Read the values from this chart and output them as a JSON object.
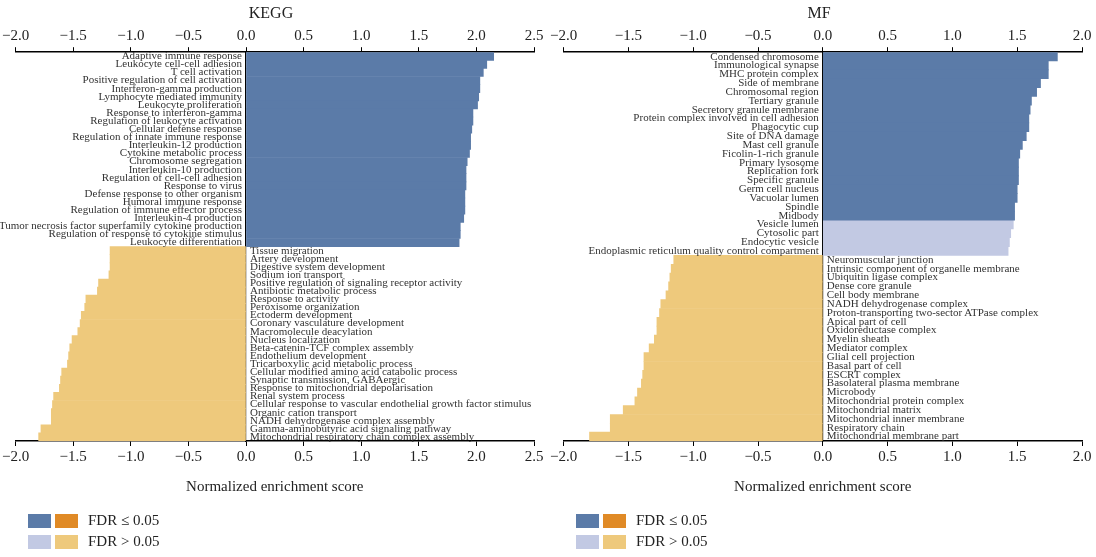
{
  "chart_data": [
    {
      "type": "bar",
      "orientation": "horizontal",
      "stacked": true,
      "title": "KEGG",
      "xlabel": "Normalized enrichment score",
      "legend": "bottom left",
      "grid": false,
      "categories": [
        "Adaptive immune response",
        "Leukocyte cell-cell adhesion",
        "T cell activation",
        "Positive regulation of cell activation",
        "Interferon-gamma production",
        "Lymphocyte mediated immunity",
        "Leukocyte proliferation",
        "Response to interferon-gamma",
        "Regulation of leukocyte activation",
        "Cellular defense response",
        "Regulation of innate immune response",
        "Interleukin-12 production",
        "Cytokine metabolic process",
        "Chromosome segregation",
        "Interleukin-10 production",
        "Regulation of cell-cell adhesion",
        "Response to virus",
        "Defense response to other organism",
        "Humoral immune response",
        "Regulation of immune effector process",
        "Interleukin-4 production",
        "Tumor necrosis factor superfamily cytokine production",
        "Regulation of response to cytokine stimulus",
        "Leukocyte differentiation",
        "Tissue migration",
        "Artery development",
        "Digestive system development",
        "Sodium ion transport",
        "Positive regulation of signaling receptor activity",
        "Antibiotic metabolic process",
        "Response to activity",
        "Peroxisome organization",
        "Ectoderm development",
        "Coronary vasculature development",
        "Macromolecule deacylation",
        "Nucleus localization",
        "Beta-catenin-TCF complex assembly",
        "Endothelium development",
        "Tricarboxylic acid metabolic process",
        "Cellular modified amino acid catabolic process",
        "Synaptic transmission, GABAergic",
        "Response to mitochondrial depolarisation",
        "Renal system process",
        "Cellular response to vascular endothelial growth factor stimulus",
        "Organic cation transport",
        "NADH dehydrogenase complex assembly",
        "Gamma-aminobutyric acid signaling pathway",
        "Mitochondrial respiratory chain complex assembly"
      ],
      "series": [
        {
          "color": "#5b7ba8",
          "values": [
            2.15,
            2.09,
            2.06,
            2.03,
            2.03,
            2.02,
            2.01,
            1.97,
            1.97,
            1.96,
            1.95,
            1.95,
            1.94,
            1.92,
            1.91,
            1.91,
            1.91,
            1.9,
            1.9,
            1.9,
            1.89,
            1.86,
            1.86,
            1.85,
            null,
            null,
            null,
            null,
            null,
            null,
            null,
            null,
            null,
            null,
            null,
            null,
            null,
            null,
            null,
            null,
            null,
            null,
            null,
            null,
            null,
            null,
            null,
            null
          ]
        },
        {
          "name": "FDR ≤ 0.05",
          "color": "#e08a26",
          "values": [
            null,
            null,
            null,
            null,
            null,
            null,
            null,
            null,
            null,
            null,
            null,
            null,
            null,
            null,
            null,
            null,
            null,
            null,
            null,
            null,
            null,
            null,
            null,
            null,
            null,
            null,
            null,
            null,
            null,
            null,
            null,
            null,
            null,
            null,
            null,
            null,
            null,
            null,
            null,
            null,
            null,
            null,
            null,
            null,
            null,
            null,
            null,
            null
          ]
        },
        {
          "color": "#c2c9e3",
          "values": [
            null,
            null,
            null,
            null,
            null,
            null,
            null,
            null,
            null,
            null,
            null,
            null,
            null,
            null,
            null,
            null,
            null,
            null,
            null,
            null,
            null,
            null,
            null,
            null,
            null,
            null,
            null,
            null,
            null,
            null,
            null,
            null,
            null,
            null,
            null,
            null,
            null,
            null,
            null,
            null,
            null,
            null,
            null,
            null,
            null,
            null,
            null,
            null
          ]
        },
        {
          "name": "FDR > 0.05",
          "color": "#eec97c",
          "values": [
            null,
            null,
            null,
            null,
            null,
            null,
            null,
            null,
            null,
            null,
            null,
            null,
            null,
            null,
            null,
            null,
            null,
            null,
            null,
            null,
            null,
            null,
            null,
            null,
            -1.18,
            -1.18,
            -1.18,
            -1.19,
            -1.28,
            -1.29,
            -1.39,
            -1.4,
            -1.43,
            -1.44,
            -1.46,
            -1.51,
            -1.53,
            -1.54,
            -1.55,
            -1.6,
            -1.61,
            -1.62,
            -1.67,
            -1.68,
            -1.69,
            -1.69,
            -1.78,
            -1.8
          ]
        }
      ],
      "xlim": [
        -2,
        2.5
      ],
      "xticks": [
        {
          "value": -2,
          "label": "−2.0"
        },
        {
          "value": -1.5,
          "label": "−1.5"
        },
        {
          "value": -1,
          "label": "−1.0"
        },
        {
          "value": -0.5,
          "label": "−0.5"
        },
        {
          "value": 0,
          "label": "0.0"
        },
        {
          "value": 0.5,
          "label": "0.5"
        },
        {
          "value": 1,
          "label": "1.0"
        },
        {
          "value": 1.5,
          "label": "1.5"
        },
        {
          "value": 2,
          "label": "2.0"
        },
        {
          "value": 2.5,
          "label": "2.5"
        }
      ],
      "x2lim": [
        -2,
        2.5
      ],
      "x2ticks": [
        {
          "value": -2,
          "label": "−2.0"
        },
        {
          "value": -1.5,
          "label": "−1.5"
        },
        {
          "value": -1,
          "label": "−1.0"
        },
        {
          "value": -0.5,
          "label": "−0.5"
        },
        {
          "value": 0,
          "label": "0.0"
        },
        {
          "value": 0.5,
          "label": "0.5"
        },
        {
          "value": 1,
          "label": "1.0"
        },
        {
          "value": 1.5,
          "label": "1.5"
        },
        {
          "value": 2,
          "label": "2.0"
        },
        {
          "value": 2.5,
          "label": "2.5"
        }
      ]
    },
    {
      "type": "bar",
      "orientation": "horizontal",
      "stacked": true,
      "title": "MF",
      "xlabel": "Normalized enrichment score",
      "legend": "bottom left",
      "grid": false,
      "categories": [
        "Condensed chromosome",
        "Immunological synapse",
        "MHC protein complex",
        "Side of membrane",
        "Chromosomal region",
        "Tertiary granule",
        "Secretory granule membrane",
        "Protein complex involved in cell adhesion",
        "Phagocytic cup",
        "Site of DNA damage",
        "Mast cell granule",
        "Ficolin-1-rich granule",
        "Primary lysosome",
        "Replication fork",
        "Specific granule",
        "Germ cell nucleus",
        "Vacuolar lumen",
        "Spindle",
        "Midbody",
        "Vesicle lumen",
        "Cytosolic part",
        "Endocytic vesicle",
        "Endoplasmic reticulum quality control compartment",
        "Neuromuscular junction",
        "Intrinsic component of organelle membrane",
        "Ubiquitin ligase complex",
        "Dense core granule",
        "Cell body membrane",
        "NADH dehydrogenase complex",
        "Proton-transporting two-sector ATPase complex",
        "Apical part of cell",
        "Oxidoreductase complex",
        "Myelin sheath",
        "Mediator complex",
        "Glial cell projection",
        "Basal part of cell",
        "ESCRT complex",
        "Basolateral plasma membrane",
        "Microbody",
        "Mitochondrial protein complex",
        "Mitochondrial matrix",
        "Mitochondrial inner membrane",
        "Respiratory chain",
        "Mitochondrial membrane part"
      ],
      "series": [
        {
          "color": "#5b7ba8",
          "values": [
            1.81,
            1.74,
            1.74,
            1.68,
            1.65,
            1.61,
            1.6,
            1.59,
            1.59,
            1.57,
            1.54,
            1.52,
            1.51,
            1.51,
            1.51,
            1.5,
            1.5,
            1.48,
            1.48,
            null,
            null,
            null,
            null,
            null,
            null,
            null,
            null,
            null,
            null,
            null,
            null,
            null,
            null,
            null,
            null,
            null,
            null,
            null,
            null,
            null,
            null,
            null,
            null,
            null
          ]
        },
        {
          "name": "FDR ≤ 0.05",
          "color": "#e08a26",
          "values": [
            null,
            null,
            null,
            null,
            null,
            null,
            null,
            null,
            null,
            null,
            null,
            null,
            null,
            null,
            null,
            null,
            null,
            null,
            null,
            null,
            null,
            null,
            null,
            null,
            null,
            null,
            null,
            null,
            null,
            null,
            null,
            null,
            null,
            null,
            null,
            null,
            null,
            null,
            null,
            null,
            null,
            null,
            null,
            null
          ]
        },
        {
          "color": "#c2c9e3",
          "values": [
            null,
            null,
            null,
            null,
            null,
            null,
            null,
            null,
            null,
            null,
            null,
            null,
            null,
            null,
            null,
            null,
            null,
            null,
            null,
            1.47,
            1.45,
            1.44,
            1.43,
            null,
            null,
            null,
            null,
            null,
            null,
            null,
            null,
            null,
            null,
            null,
            null,
            null,
            null,
            null,
            null,
            null,
            null,
            null,
            null,
            null
          ]
        },
        {
          "name": "FDR > 0.05",
          "color": "#eec97c",
          "values": [
            null,
            null,
            null,
            null,
            null,
            null,
            null,
            null,
            null,
            null,
            null,
            null,
            null,
            null,
            null,
            null,
            null,
            null,
            null,
            null,
            null,
            null,
            null,
            -1.15,
            -1.17,
            -1.18,
            -1.19,
            -1.21,
            -1.25,
            -1.26,
            -1.28,
            -1.28,
            -1.3,
            -1.34,
            -1.38,
            -1.38,
            -1.39,
            -1.4,
            -1.43,
            -1.45,
            -1.54,
            -1.64,
            -1.64,
            -1.8
          ]
        }
      ],
      "xlim": [
        -2,
        2
      ],
      "xticks": [
        {
          "value": -2,
          "label": "−2.0"
        },
        {
          "value": -1.5,
          "label": "−1.5"
        },
        {
          "value": -1,
          "label": "−1.0"
        },
        {
          "value": -0.5,
          "label": "−0.5"
        },
        {
          "value": 0,
          "label": "0.0"
        },
        {
          "value": 0.5,
          "label": "0.5"
        },
        {
          "value": 1,
          "label": "1.0"
        },
        {
          "value": 1.5,
          "label": "1.5"
        },
        {
          "value": 2,
          "label": "2.0"
        }
      ],
      "x2lim": [
        -2,
        2
      ],
      "x2ticks": [
        {
          "value": -2,
          "label": "−2.0"
        },
        {
          "value": -1.5,
          "label": "−1.5"
        },
        {
          "value": -1,
          "label": "−1.0"
        },
        {
          "value": -0.5,
          "label": "−0.5"
        },
        {
          "value": 0,
          "label": "0.0"
        },
        {
          "value": 0.5,
          "label": "0.5"
        },
        {
          "value": 1,
          "label": "1.0"
        },
        {
          "value": 1.5,
          "label": "1.5"
        },
        {
          "value": 2,
          "label": "2.0"
        }
      ]
    }
  ]
}
